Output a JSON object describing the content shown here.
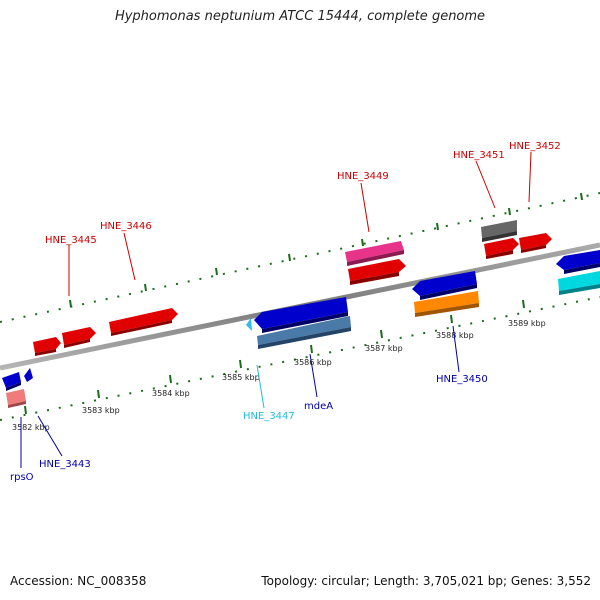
{
  "title": "Hyphomonas neptunium ATCC 15444, complete genome",
  "footer": {
    "accession": "Accession: NC_008358",
    "summary": "Topology: circular; Length: 3,705,021 bp; Genes: 3,552"
  },
  "ticks": {
    "lower": [
      "3582 kbp",
      "3583 kbp",
      "3584 kbp",
      "3585 kbp",
      "3586 kbp",
      "3587 kbp",
      "3588 kbp",
      "3589 kbp"
    ]
  },
  "gene_labels": {
    "upper": [
      "HNE_3445",
      "HNE_3446",
      "HNE_3449",
      "HNE_3451",
      "HNE_3452"
    ],
    "lower": [
      "rpsO",
      "HNE_3443",
      "HNE_3447",
      "mdeA",
      "HNE_3450"
    ]
  },
  "colors": {
    "red": "#e00000",
    "pink": "#e8338a",
    "blue": "#0000cc",
    "steelblue": "#4a7aa8",
    "orange": "#ff8800",
    "cyan": "#00d8e0",
    "gray": "#666666",
    "salmon": "#f07b7b",
    "skyblue": "#33bbee",
    "tick": "#1a6b1a",
    "label_red": "#cc0000",
    "label_blue": "#0000aa",
    "label_cyan": "#22bbdd"
  }
}
